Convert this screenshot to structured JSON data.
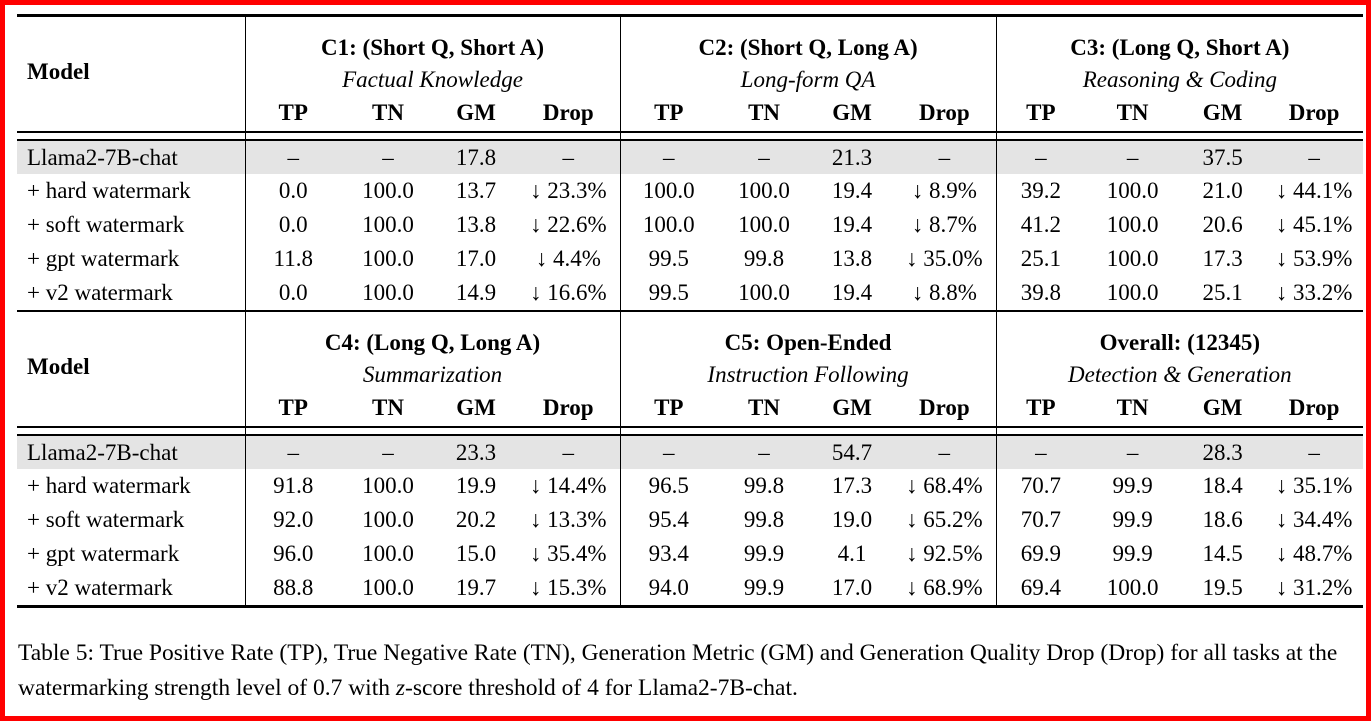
{
  "frame": {
    "border_color": "#ff0000",
    "background_color": "#ffffff",
    "highlight_row_color": "#e4e4e4"
  },
  "table": {
    "model_header": "Model",
    "metric_headers": [
      "TP",
      "TN",
      "GM",
      "Drop"
    ],
    "sections": [
      {
        "groups": [
          {
            "title": "C1: (Short Q, Short A)",
            "subtitle": "Factual Knowledge"
          },
          {
            "title": "C2: (Short Q, Long A)",
            "subtitle": "Long-form QA"
          },
          {
            "title": "C3: (Long Q, Short A)",
            "subtitle": "Reasoning & Coding"
          }
        ],
        "rows": [
          {
            "model": "Llama2-7B-chat",
            "highlight": true,
            "cells": [
              "–",
              "–",
              "17.8",
              "–",
              "–",
              "–",
              "21.3",
              "–",
              "–",
              "–",
              "37.5",
              "–"
            ]
          },
          {
            "model": "+ hard watermark",
            "highlight": false,
            "cells": [
              "0.0",
              "100.0",
              "13.7",
              "↓ 23.3%",
              "100.0",
              "100.0",
              "19.4",
              "↓ 8.9%",
              "39.2",
              "100.0",
              "21.0",
              "↓ 44.1%"
            ]
          },
          {
            "model": "+ soft watermark",
            "highlight": false,
            "cells": [
              "0.0",
              "100.0",
              "13.8",
              "↓ 22.6%",
              "100.0",
              "100.0",
              "19.4",
              "↓ 8.7%",
              "41.2",
              "100.0",
              "20.6",
              "↓ 45.1%"
            ]
          },
          {
            "model": "+ gpt watermark",
            "highlight": false,
            "cells": [
              "11.8",
              "100.0",
              "17.0",
              "↓ 4.4%",
              "99.5",
              "99.8",
              "13.8",
              "↓ 35.0%",
              "25.1",
              "100.0",
              "17.3",
              "↓ 53.9%"
            ]
          },
          {
            "model": "+ v2 watermark",
            "highlight": false,
            "cells": [
              "0.0",
              "100.0",
              "14.9",
              "↓ 16.6%",
              "99.5",
              "100.0",
              "19.4",
              "↓ 8.8%",
              "39.8",
              "100.0",
              "25.1",
              "↓ 33.2%"
            ]
          }
        ]
      },
      {
        "groups": [
          {
            "title": "C4: (Long Q, Long A)",
            "subtitle": "Summarization"
          },
          {
            "title": "C5: Open-Ended",
            "subtitle": "Instruction Following"
          },
          {
            "title": "Overall: (12345)",
            "subtitle": "Detection & Generation"
          }
        ],
        "rows": [
          {
            "model": "Llama2-7B-chat",
            "highlight": true,
            "cells": [
              "–",
              "–",
              "23.3",
              "–",
              "–",
              "–",
              "54.7",
              "–",
              "–",
              "–",
              "28.3",
              "–"
            ]
          },
          {
            "model": "+ hard watermark",
            "highlight": false,
            "cells": [
              "91.8",
              "100.0",
              "19.9",
              "↓ 14.4%",
              "96.5",
              "99.8",
              "17.3",
              "↓ 68.4%",
              "70.7",
              "99.9",
              "18.4",
              "↓ 35.1%"
            ]
          },
          {
            "model": "+ soft watermark",
            "highlight": false,
            "cells": [
              "92.0",
              "100.0",
              "20.2",
              "↓ 13.3%",
              "95.4",
              "99.8",
              "19.0",
              "↓ 65.2%",
              "70.7",
              "99.9",
              "18.6",
              "↓ 34.4%"
            ]
          },
          {
            "model": "+ gpt watermark",
            "highlight": false,
            "cells": [
              "96.0",
              "100.0",
              "15.0",
              "↓ 35.4%",
              "93.4",
              "99.9",
              "4.1",
              "↓ 92.5%",
              "69.9",
              "99.9",
              "14.5",
              "↓ 48.7%"
            ]
          },
          {
            "model": "+ v2 watermark",
            "highlight": false,
            "cells": [
              "88.8",
              "100.0",
              "19.7",
              "↓ 15.3%",
              "94.0",
              "99.9",
              "17.0",
              "↓ 68.9%",
              "69.4",
              "100.0",
              "19.5",
              "↓ 31.2%"
            ]
          }
        ]
      }
    ]
  },
  "caption": {
    "before_z": "Table 5: True Positive Rate (TP), True Negative Rate (TN), Generation Metric (GM) and Generation Quality Drop (Drop) for all tasks at the watermarking strength level of 0.7 with ",
    "z": "z",
    "after_z": "-score threshold of 4 for Llama2-7B-chat."
  }
}
